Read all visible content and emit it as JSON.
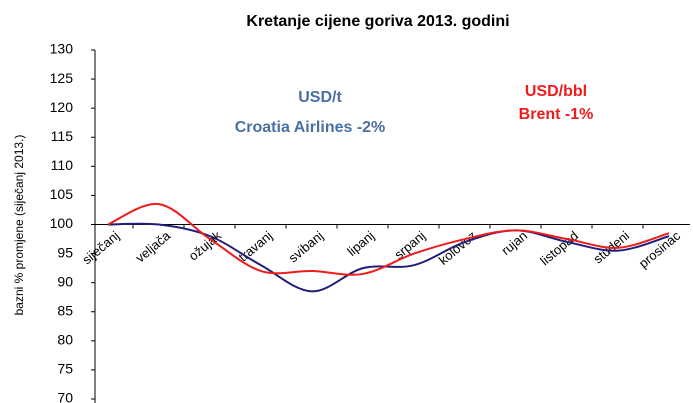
{
  "chart_data": {
    "type": "line",
    "title": "Kretanje cijene goriva 2013. godini",
    "y_label": "bazni % promjene (siječanj 2013.)",
    "categories": [
      "siječanj",
      "veljača",
      "ožujak",
      "travanj",
      "svibanj",
      "lipanj",
      "srpanj",
      "kolovoz",
      "rujan",
      "listopad",
      "studeni",
      "prosinac"
    ],
    "series": [
      {
        "name": "Croatia Airlines",
        "color": "#1f1f7a",
        "values": [
          100,
          100,
          98,
          93,
          88.5,
          92.5,
          93,
          97,
          99,
          97,
          95.5,
          98
        ]
      },
      {
        "name": "Brent",
        "color": "#ee1c1c",
        "values": [
          100,
          103.5,
          97.5,
          92,
          92,
          91.5,
          95,
          97.5,
          99,
          97.5,
          96,
          98.5
        ]
      }
    ],
    "annotations": [
      {
        "text": "USD/t",
        "color": "#4a6fa5"
      },
      {
        "text": "Croatia Airlines -2%",
        "color": "#4a6fa5"
      },
      {
        "text": "USD/bbl",
        "color": "#ee1c1c"
      },
      {
        "text": "Brent -1%",
        "color": "#ee1c1c"
      }
    ],
    "ylim": [
      70,
      130
    ],
    "yticks": [
      70,
      75,
      80,
      85,
      90,
      95,
      100,
      105,
      110,
      115,
      120,
      125,
      130
    ],
    "xaxis_at": 100,
    "grid": false
  }
}
